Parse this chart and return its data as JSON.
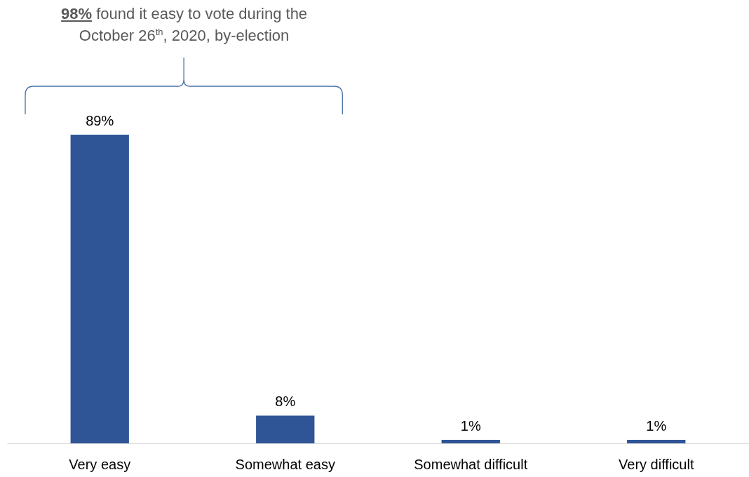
{
  "chart_data": {
    "type": "bar",
    "categories": [
      "Very easy",
      "Somewhat easy",
      "Somewhat difficult",
      "Very difficult"
    ],
    "values": [
      89,
      8,
      1,
      1
    ],
    "value_labels": [
      "89%",
      "8%",
      "1%",
      "1%"
    ],
    "color": "#2f5597",
    "annotations": [
      "98% found it easy to vote during the October 26$^{th}$, 2020, by-election"
    ]
  }
}
